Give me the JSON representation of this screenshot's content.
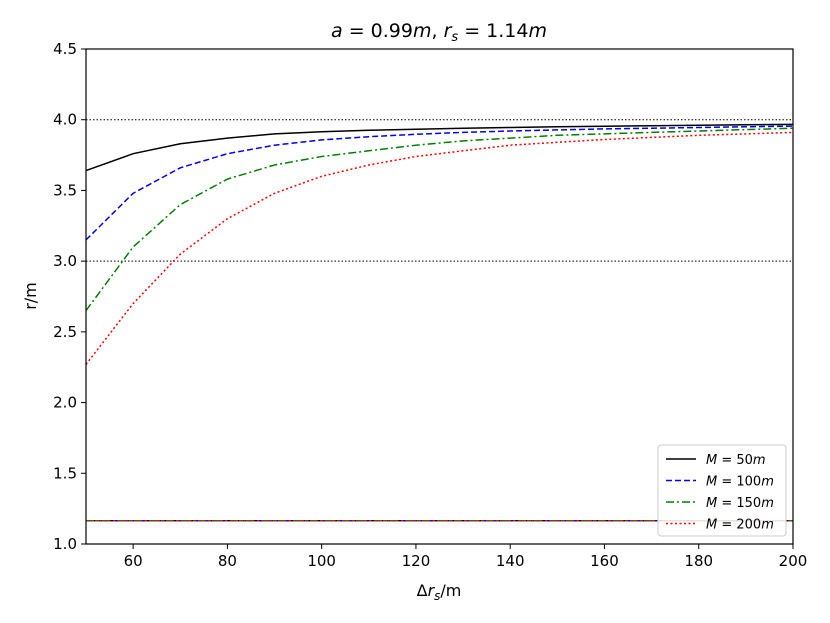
{
  "chart_data": {
    "type": "line",
    "title": "a = 0.99m, r_s = 1.14m",
    "title_parts": {
      "a_label": "a",
      "a_value": " = 0.99",
      "a_unit": "m",
      "sep": ", ",
      "rs_label": "r",
      "rs_sub": "s",
      "rs_value": " = 1.14",
      "rs_unit": "m"
    },
    "xlabel": "Δr_s/m",
    "xlabel_parts": {
      "prefix": "Δ",
      "var": "r",
      "sub": "s",
      "suffix": "/m"
    },
    "ylabel": "r/m",
    "xlim": [
      50,
      200
    ],
    "ylim": [
      1.0,
      4.5
    ],
    "xticks": [
      60,
      80,
      100,
      120,
      140,
      160,
      180,
      200
    ],
    "xtick_labels": [
      "60",
      "80",
      "100",
      "120",
      "140",
      "160",
      "180",
      "200"
    ],
    "yticks": [
      1.0,
      1.5,
      2.0,
      2.5,
      3.0,
      3.5,
      4.0,
      4.5
    ],
    "ytick_labels": [
      "1.0",
      "1.5",
      "2.0",
      "2.5",
      "3.0",
      "3.5",
      "4.0",
      "4.5"
    ],
    "reference_lines": [
      {
        "y": 4.0,
        "style": "dotted"
      },
      {
        "y": 3.0,
        "style": "dotted"
      }
    ],
    "x": [
      50,
      60,
      70,
      80,
      90,
      100,
      110,
      120,
      130,
      140,
      150,
      160,
      170,
      180,
      190,
      200
    ],
    "series": [
      {
        "name": "M = 50m",
        "legend_var": "M",
        "legend_value": " = 50",
        "legend_unit": "m",
        "color": "#000000",
        "dash": "solid",
        "values": [
          3.64,
          3.76,
          3.83,
          3.87,
          3.9,
          3.915,
          3.925,
          3.933,
          3.94,
          3.945,
          3.95,
          3.954,
          3.958,
          3.961,
          3.964,
          3.967
        ]
      },
      {
        "name": "M = 100m",
        "legend_var": "M",
        "legend_value": " = 100",
        "legend_unit": "m",
        "color": "#0000ff",
        "dash": "dashed",
        "values": [
          3.15,
          3.48,
          3.66,
          3.76,
          3.82,
          3.857,
          3.88,
          3.897,
          3.91,
          3.92,
          3.928,
          3.935,
          3.94,
          3.945,
          3.95,
          3.955
        ]
      },
      {
        "name": "M = 150m",
        "legend_var": "M",
        "legend_value": " = 150",
        "legend_unit": "m",
        "color": "#008000",
        "dash": "dashdot",
        "values": [
          2.65,
          3.1,
          3.4,
          3.58,
          3.68,
          3.74,
          3.78,
          3.82,
          3.85,
          3.87,
          3.89,
          3.9,
          3.91,
          3.92,
          3.93,
          3.94
        ]
      },
      {
        "name": "M = 200m",
        "legend_var": "M",
        "legend_value": " = 200",
        "legend_unit": "m",
        "color": "#ff0000",
        "dash": "dotted",
        "values": [
          2.27,
          2.7,
          3.05,
          3.3,
          3.48,
          3.6,
          3.68,
          3.74,
          3.78,
          3.82,
          3.84,
          3.86,
          3.875,
          3.89,
          3.9,
          3.91
        ]
      }
    ],
    "lower_series_y": 1.165,
    "legend_position": "lower-right",
    "grid": false
  }
}
